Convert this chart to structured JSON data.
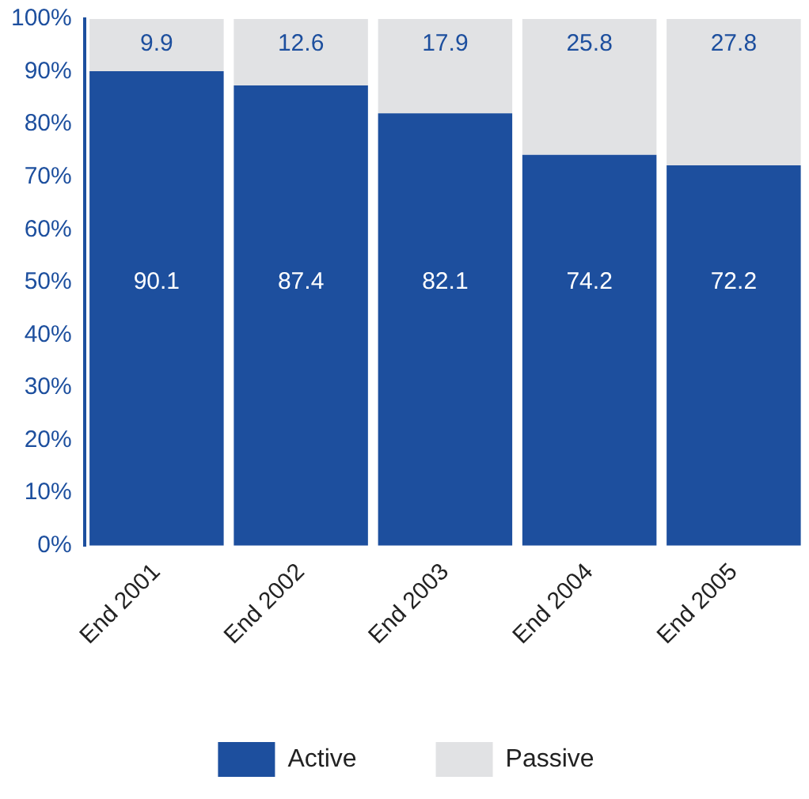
{
  "chart_data": {
    "type": "bar",
    "stacked": true,
    "categories": [
      "End 2001",
      "End 2002",
      "End 2003",
      "End 2004",
      "End 2005"
    ],
    "series": [
      {
        "name": "Active",
        "color": "#1d4f9e",
        "values": [
          90.1,
          87.4,
          82.1,
          74.2,
          72.2
        ]
      },
      {
        "name": "Passive",
        "color": "#e1e2e4",
        "values": [
          9.9,
          12.6,
          17.9,
          25.8,
          27.8
        ]
      }
    ],
    "ylim": [
      0,
      100
    ],
    "yticks": [
      {
        "value": 0,
        "label": "0%"
      },
      {
        "value": 10,
        "label": "10%"
      },
      {
        "value": 20,
        "label": "20%"
      },
      {
        "value": 30,
        "label": "30%"
      },
      {
        "value": 40,
        "label": "40%"
      },
      {
        "value": 50,
        "label": "50%"
      },
      {
        "value": 60,
        "label": "60%"
      },
      {
        "value": 70,
        "label": "70%"
      },
      {
        "value": 80,
        "label": "80%"
      },
      {
        "value": 90,
        "label": "90%"
      },
      {
        "value": 100,
        "label": "100%"
      }
    ],
    "grid": false,
    "legend": "bottom",
    "data_labels": true
  }
}
